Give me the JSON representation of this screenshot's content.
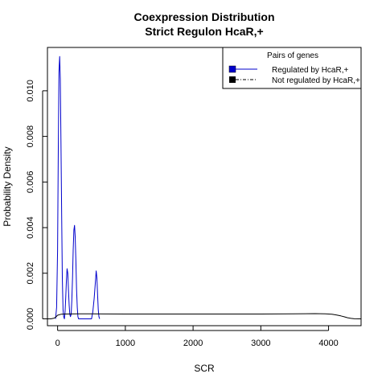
{
  "chart_data": {
    "type": "line",
    "title": "Coexpression Distribution",
    "subtitle": "Strict Regulon HcaR,+",
    "xlabel": "SCR",
    "ylabel": "Probability Density",
    "xlim": [
      -150,
      4480
    ],
    "ylim": [
      -0.0003,
      0.0119
    ],
    "xticks": [
      0,
      1000,
      2000,
      3000,
      4000
    ],
    "xtick_labels": [
      "0",
      "1000",
      "2000",
      "3000",
      "4000"
    ],
    "yticks": [
      0.0,
      0.002,
      0.004,
      0.006,
      0.008,
      0.01
    ],
    "ytick_labels": [
      "0.000",
      "0.002",
      "0.004",
      "0.006",
      "0.008",
      "0.010"
    ],
    "legend": {
      "title": "Pairs of genes",
      "placement": "top-right",
      "entries": [
        "Regulated by  HcaR,+",
        "Not regulated by  HcaR,+"
      ]
    },
    "series": [
      {
        "name": "Regulated by  HcaR,+",
        "color": "#0000cc",
        "x": [
          -30,
          -15,
          0,
          10,
          20,
          30,
          40,
          50,
          60,
          70,
          80,
          90,
          100,
          110,
          120,
          130,
          140,
          150,
          160,
          170,
          180,
          190,
          200,
          210,
          220,
          230,
          240,
          250,
          260,
          270,
          280,
          290,
          300,
          310,
          320,
          330,
          340,
          350,
          400,
          450,
          480,
          500,
          520,
          540,
          560,
          570,
          580,
          590,
          600,
          610,
          620
        ],
        "y": [
          0.0,
          0.0005,
          0.003,
          0.0075,
          0.0108,
          0.0115,
          0.0105,
          0.0078,
          0.0045,
          0.0018,
          0.0004,
          0.0001,
          0.0,
          0.0003,
          0.0009,
          0.0017,
          0.0022,
          0.002,
          0.0013,
          0.0006,
          0.0002,
          0.0001,
          0.0002,
          0.0008,
          0.0018,
          0.003,
          0.0039,
          0.0041,
          0.0036,
          0.0025,
          0.0013,
          0.0005,
          0.0001,
          0.0,
          0.0,
          0.0,
          0.0,
          0.0,
          0.0,
          0.0,
          0.0,
          0.0,
          0.0003,
          0.0009,
          0.0017,
          0.0021,
          0.0018,
          0.0011,
          0.0004,
          0.0001,
          0.0
        ]
      },
      {
        "name": "Not regulated by  HcaR,+",
        "color": "#000000",
        "x": [
          -150,
          -100,
          -50,
          -20,
          0,
          50,
          100,
          300,
          500,
          1000,
          1500,
          2000,
          2500,
          3000,
          3500,
          3800,
          3950,
          4050,
          4120,
          4180,
          4230,
          4280,
          4330,
          4380,
          4450,
          4480
        ],
        "y": [
          0.0,
          0.0,
          3e-05,
          0.0001,
          0.00016,
          0.0002,
          0.00021,
          0.00022,
          0.00022,
          0.00021,
          0.00021,
          0.00021,
          0.00021,
          0.00021,
          0.00022,
          0.00023,
          0.00022,
          0.0002,
          0.00017,
          0.00013,
          9e-05,
          5e-05,
          2e-05,
          5e-06,
          0.0,
          0.0
        ]
      }
    ]
  }
}
